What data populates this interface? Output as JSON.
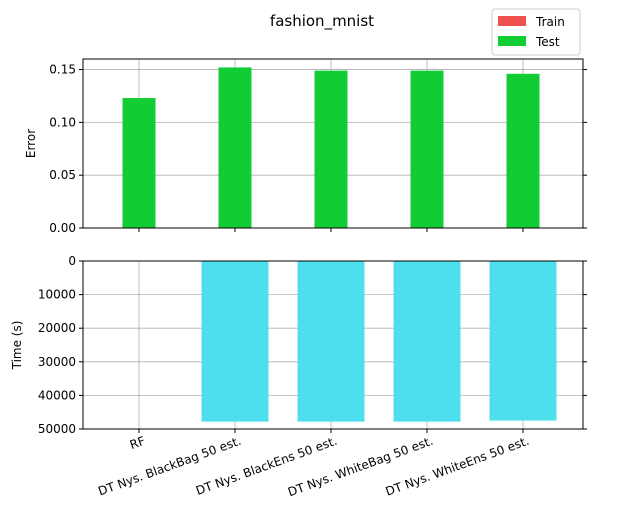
{
  "chart_data": [
    {
      "type": "bar",
      "title": "fashion_mnist",
      "xlabel": "",
      "ylabel": "Error",
      "ylim": [
        0,
        0.16
      ],
      "yticks": [
        0.0,
        0.05,
        0.1,
        0.15
      ],
      "ytick_labels": [
        "0.00",
        "0.05",
        "0.10",
        "0.15"
      ],
      "grid": true,
      "legend": {
        "placement": "top-right",
        "entries": [
          "Train",
          "Test"
        ]
      },
      "categories": [
        "RF",
        "DT Nys. BlackBag 50 est.",
        "DT Nys. BlackEns 50 est.",
        "DT Nys. WhiteBag 50 est.",
        "DT Nys. WhiteEns 50 est."
      ],
      "series": [
        {
          "name": "Train",
          "color": "#ee5050",
          "values": [
            0,
            0,
            0,
            0,
            0
          ]
        },
        {
          "name": "Test",
          "color": "#11cc33",
          "values": [
            0.123,
            0.152,
            0.149,
            0.149,
            0.146
          ]
        }
      ]
    },
    {
      "type": "bar",
      "xlabel": "",
      "ylabel": "Time (s)",
      "ylim": [
        0,
        50000
      ],
      "inverted_y": true,
      "yticks": [
        0,
        10000,
        20000,
        30000,
        40000,
        50000
      ],
      "ytick_labels": [
        "0",
        "10000",
        "20000",
        "30000",
        "40000",
        "50000"
      ],
      "grid": true,
      "categories": [
        "RF",
        "DT Nys. BlackBag 50 est.",
        "DT Nys. BlackEns 50 est.",
        "DT Nys. WhiteBag 50 est.",
        "DT Nys. WhiteEns 50 est."
      ],
      "series": [
        {
          "color": "#4ddfec",
          "values": [
            30,
            47800,
            47800,
            47800,
            47500
          ]
        }
      ]
    }
  ]
}
